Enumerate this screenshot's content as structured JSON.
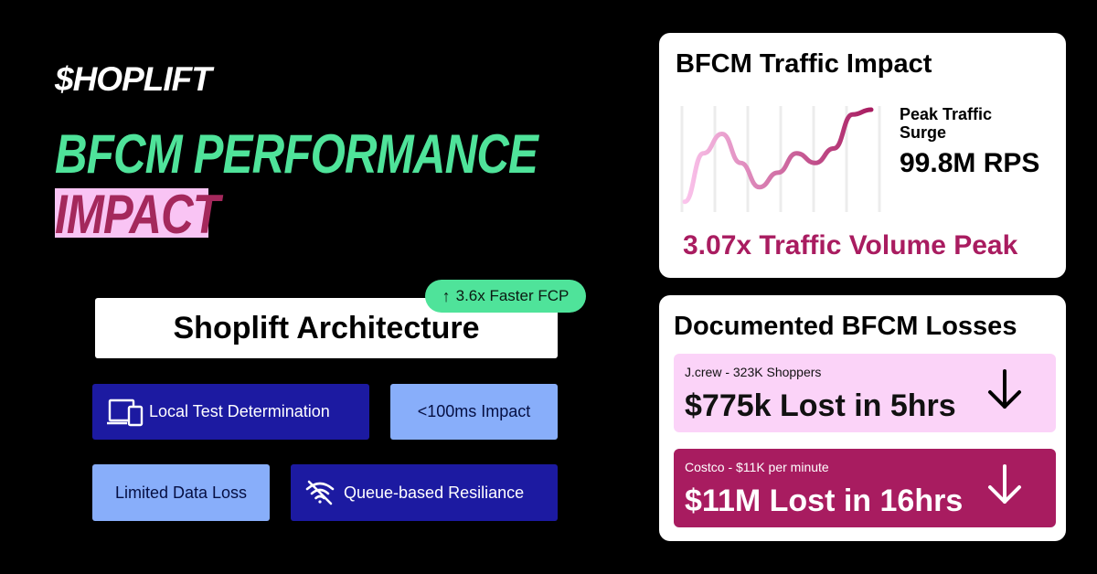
{
  "brand": {
    "logo": "$HOPLIFT"
  },
  "headline": {
    "line1": "BFCM PERFORMANCE",
    "line2": "IMPACT"
  },
  "architecture": {
    "title": "Shoplift Architecture",
    "badge": "3.6x Faster FCP",
    "features": [
      {
        "label": "Local Test Determination",
        "icon": "devices-icon"
      },
      {
        "label": "<100ms Impact"
      },
      {
        "label": "Limited Data Loss"
      },
      {
        "label": "Queue-based Resiliance",
        "icon": "wifi-off-icon"
      }
    ]
  },
  "traffic": {
    "title": "BFCM Traffic Impact",
    "peak_label": "Peak Traffic Surge",
    "peak_value": "99.8M RPS",
    "volume": "3.07x Traffic Volume Peak",
    "chart_data": {
      "type": "line",
      "x": [
        0,
        1,
        2,
        3,
        4,
        5,
        6,
        7,
        8,
        9,
        10
      ],
      "values": [
        0.05,
        0.55,
        0.75,
        0.45,
        0.2,
        0.35,
        0.55,
        0.45,
        0.6,
        0.95,
        1.0
      ],
      "colors": {
        "start": "#fbc4ec",
        "end": "#a81c60"
      }
    }
  },
  "losses": {
    "title": "Documented BFCM Losses",
    "items": [
      {
        "sub": "J.crew - 323K Shoppers",
        "main": "$775k Lost in 5hrs"
      },
      {
        "sub": "Costco - $11K per minute",
        "main": "$11M Lost in 16hrs"
      }
    ]
  },
  "colors": {
    "green": "#4fe39a",
    "pink": "#f9c4f4",
    "magenta": "#a81c60",
    "navy": "#1c1aa1",
    "periwinkle": "#88aefa"
  }
}
